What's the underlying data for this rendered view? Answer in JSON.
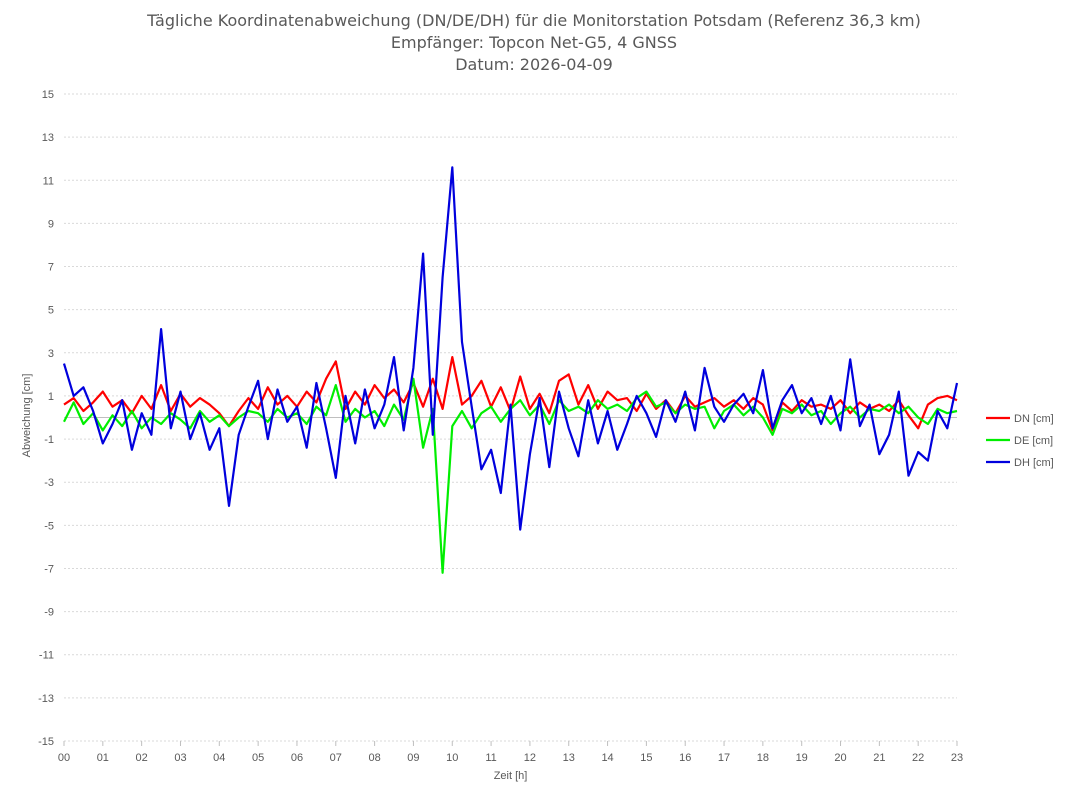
{
  "header": {
    "title": "Tägliche Koordinatenabweichung (DN/DE/DH) für die Monitorstation Potsdam (Referenz 36,3 km)",
    "subtitle1": "Empfänger: Topcon Net-G5, 4 GNSS",
    "subtitle2": "Datum: 2026-04-09"
  },
  "chart_data": {
    "type": "line",
    "title": "Tägliche Koordinatenabweichung (DN/DE/DH) für die Monitorstation Potsdam (Referenz 36,3 km)",
    "xlabel": "Zeit [h]",
    "ylabel": "Abweichung [cm]",
    "xlim": [
      0,
      23
    ],
    "ylim": [
      -15,
      15
    ],
    "x_ticks": [
      "00",
      "01",
      "02",
      "03",
      "04",
      "05",
      "06",
      "07",
      "08",
      "09",
      "10",
      "11",
      "12",
      "13",
      "14",
      "15",
      "16",
      "17",
      "18",
      "19",
      "20",
      "21",
      "22",
      "23"
    ],
    "y_ticks": [
      15,
      13,
      11,
      9,
      7,
      5,
      3,
      1,
      -1,
      -3,
      -5,
      -7,
      -9,
      -11,
      -13,
      -15
    ],
    "grid": true,
    "legend_position": "right",
    "x": [
      0,
      0.25,
      0.5,
      0.75,
      1,
      1.25,
      1.5,
      1.75,
      2,
      2.25,
      2.5,
      2.75,
      3,
      3.25,
      3.5,
      3.75,
      4,
      4.25,
      4.5,
      4.75,
      5,
      5.25,
      5.5,
      5.75,
      6,
      6.25,
      6.5,
      6.75,
      7,
      7.25,
      7.5,
      7.75,
      8,
      8.25,
      8.5,
      8.75,
      9,
      9.25,
      9.5,
      9.75,
      10,
      10.25,
      10.5,
      10.75,
      11,
      11.25,
      11.5,
      11.75,
      12,
      12.25,
      12.5,
      12.75,
      13,
      13.25,
      13.5,
      13.75,
      14,
      14.25,
      14.5,
      14.75,
      15,
      15.25,
      15.5,
      15.75,
      16,
      16.25,
      16.5,
      16.75,
      17,
      17.25,
      17.5,
      17.75,
      18,
      18.25,
      18.5,
      18.75,
      19,
      19.25,
      19.5,
      19.75,
      20,
      20.25,
      20.5,
      20.75,
      21,
      21.25,
      21.5,
      21.75,
      22,
      22.25,
      22.5,
      22.75,
      23
    ],
    "series": [
      {
        "name": "DN [cm]",
        "color": "#ff0000",
        "values": [
          0.6,
          0.9,
          0.3,
          0.7,
          1.2,
          0.5,
          0.8,
          0.2,
          1.0,
          0.4,
          1.5,
          0.3,
          1.1,
          0.5,
          0.9,
          0.6,
          0.2,
          -0.4,
          0.3,
          0.9,
          0.4,
          1.4,
          0.6,
          1.0,
          0.5,
          1.2,
          0.7,
          1.8,
          2.6,
          0.4,
          1.2,
          0.6,
          1.5,
          0.9,
          1.3,
          0.7,
          1.6,
          0.5,
          1.8,
          0.4,
          2.8,
          0.6,
          1.0,
          1.7,
          0.5,
          1.4,
          0.3,
          1.9,
          0.4,
          1.1,
          0.2,
          1.7,
          2.0,
          0.6,
          1.5,
          0.4,
          1.2,
          0.8,
          0.9,
          0.3,
          1.1,
          0.4,
          0.8,
          0.2,
          1.0,
          0.5,
          0.7,
          0.9,
          0.5,
          0.8,
          0.4,
          0.9,
          0.6,
          -0.6,
          0.7,
          0.3,
          0.8,
          0.5,
          0.6,
          0.4,
          0.8,
          0.2,
          0.7,
          0.4,
          0.6,
          0.3,
          0.8,
          0.1,
          -0.5,
          0.6,
          0.9,
          1.0,
          0.8
        ]
      },
      {
        "name": "DE [cm]",
        "color": "#00ee00",
        "values": [
          -0.2,
          0.7,
          -0.3,
          0.2,
          -0.6,
          0.1,
          -0.4,
          0.3,
          -0.5,
          0.0,
          -0.3,
          0.2,
          -0.1,
          -0.5,
          0.3,
          -0.2,
          0.1,
          -0.4,
          0.0,
          0.3,
          0.2,
          -0.2,
          0.4,
          0.0,
          0.2,
          -0.3,
          0.5,
          0.1,
          1.5,
          -0.2,
          0.4,
          0.0,
          0.3,
          -0.4,
          0.6,
          -0.1,
          1.8,
          -1.4,
          0.4,
          -7.2,
          -0.4,
          0.3,
          -0.5,
          0.2,
          0.5,
          -0.2,
          0.4,
          0.8,
          0.1,
          0.6,
          -0.3,
          0.8,
          0.3,
          0.5,
          0.2,
          0.8,
          0.4,
          0.6,
          0.3,
          0.9,
          1.2,
          0.5,
          0.7,
          0.2,
          0.6,
          0.4,
          0.5,
          -0.5,
          0.3,
          0.6,
          0.1,
          0.5,
          0.0,
          -0.8,
          0.4,
          0.2,
          0.6,
          0.1,
          0.3,
          -0.3,
          0.2,
          0.5,
          0.0,
          0.4,
          0.3,
          0.6,
          0.2,
          0.5,
          0.0,
          -0.3,
          0.4,
          0.2,
          0.3
        ]
      },
      {
        "name": "DH [cm]",
        "color": "#0000dd",
        "values": [
          2.5,
          1.0,
          1.4,
          0.3,
          -1.2,
          -0.3,
          0.8,
          -1.5,
          0.2,
          -0.8,
          4.1,
          -0.5,
          1.2,
          -1.0,
          0.2,
          -1.5,
          -0.5,
          -4.1,
          -0.8,
          0.5,
          1.7,
          -1.0,
          1.3,
          -0.2,
          0.5,
          -1.4,
          1.6,
          -0.5,
          -2.8,
          1.0,
          -1.2,
          1.3,
          -0.5,
          0.6,
          2.8,
          -0.6,
          2.3,
          7.6,
          -0.8,
          6.5,
          11.6,
          3.5,
          0.5,
          -2.4,
          -1.5,
          -3.5,
          0.6,
          -5.2,
          -1.7,
          0.9,
          -2.3,
          1.2,
          -0.5,
          -1.8,
          0.8,
          -1.2,
          0.3,
          -1.5,
          -0.3,
          1.0,
          0.2,
          -0.9,
          0.8,
          -0.2,
          1.2,
          -0.6,
          2.3,
          0.5,
          -0.2,
          0.6,
          1.1,
          0.2,
          2.2,
          -0.5,
          0.8,
          1.5,
          0.2,
          0.9,
          -0.3,
          1.0,
          -0.6,
          2.7,
          -0.4,
          0.6,
          -1.7,
          -0.8,
          1.2,
          -2.7,
          -1.6,
          -2.0,
          0.3,
          -0.5,
          1.6
        ]
      }
    ]
  }
}
